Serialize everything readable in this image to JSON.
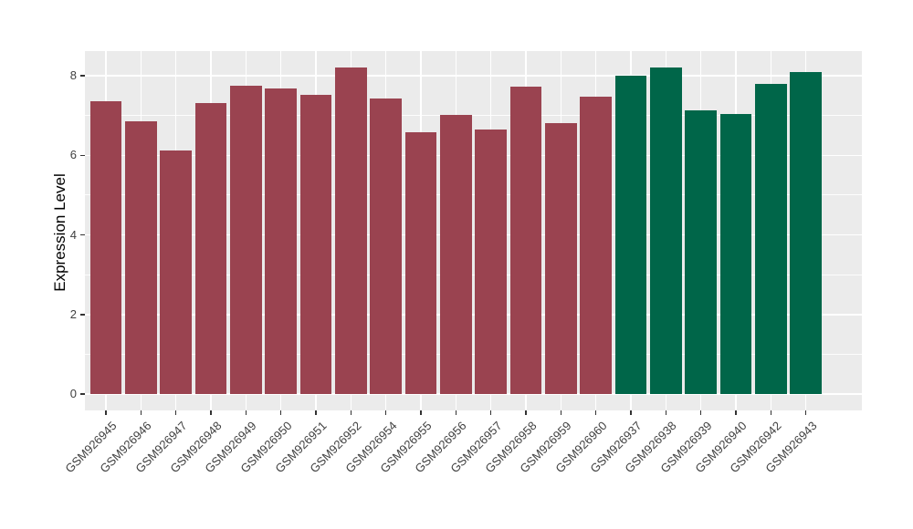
{
  "chart_data": {
    "type": "bar",
    "title": "",
    "xlabel": "",
    "ylabel": "Expression Level",
    "y_ticks": [
      0,
      2,
      4,
      6,
      8
    ],
    "y_minor": [
      1,
      3,
      5,
      7
    ],
    "y_domain": [
      -0.41,
      8.62
    ],
    "grid": true,
    "legend_position": "none",
    "categories": [
      "GSM926945",
      "GSM926946",
      "GSM926947",
      "GSM926948",
      "GSM926949",
      "GSM926950",
      "GSM926951",
      "GSM926952",
      "GSM926954",
      "GSM926955",
      "GSM926956",
      "GSM926957",
      "GSM926958",
      "GSM926959",
      "GSM926960",
      "GSM926937",
      "GSM926938",
      "GSM926939",
      "GSM926940",
      "GSM926942",
      "GSM926943"
    ],
    "values": [
      7.37,
      6.85,
      6.13,
      7.32,
      7.76,
      7.69,
      7.53,
      8.2,
      7.42,
      6.59,
      7.02,
      6.64,
      7.72,
      6.81,
      7.47,
      8.0,
      8.21,
      7.13,
      7.04,
      7.79,
      8.1
    ],
    "groups": [
      "a",
      "a",
      "a",
      "a",
      "a",
      "a",
      "a",
      "a",
      "a",
      "a",
      "a",
      "a",
      "a",
      "a",
      "a",
      "b",
      "b",
      "b",
      "b",
      "b",
      "b"
    ],
    "group_colors": {
      "a": "#9A4350",
      "b": "#006649"
    },
    "panel_bg": "#EBEBEB",
    "grid_color": "#FFFFFF",
    "tick_color": "#333333",
    "axis_text_color": "#404040"
  }
}
